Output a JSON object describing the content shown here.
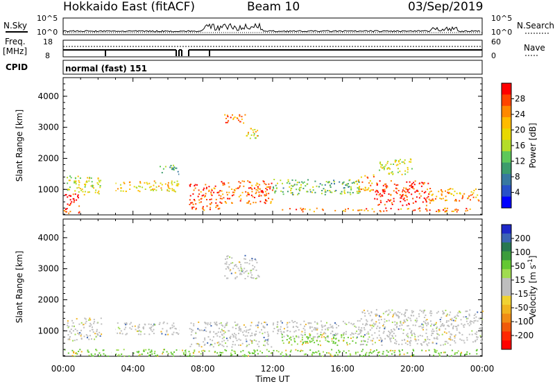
{
  "header": {
    "title": "Hokkaido East (fitACF)",
    "beam": "Beam 10",
    "date": "03/Sep/2019"
  },
  "top_panel": {
    "nsky_label": "N.Sky",
    "nsearch_label": "N.Search",
    "nsky_ticks": [
      "10^5",
      "10^0"
    ],
    "nsearch_ticks": [
      "10^5",
      "10^0"
    ],
    "freq_label": "Freq.",
    "freq_unit": "[MHz]",
    "freq_ticks": [
      "18",
      "8"
    ],
    "nave_label": "Nave",
    "nave_ticks": [
      "60",
      "0"
    ],
    "cpid_label": "CPID",
    "cpid_text": "normal (fast) 151"
  },
  "chart_data": [
    {
      "type": "heatmap",
      "name": "power",
      "ylabel": "Slant Range [km]",
      "x_ticks": [
        "00:00",
        "04:00",
        "08:00",
        "12:00",
        "16:00",
        "20:00",
        "00:00"
      ],
      "x_range_hours": [
        0,
        24
      ],
      "y_range_km": [
        180,
        4600
      ],
      "y_ticks": [
        1000,
        2000,
        3000,
        4000
      ],
      "colorbar_label": "Power [dB]",
      "colorbar_ticks": [
        "28",
        "24",
        "20",
        "16",
        "12",
        "8",
        "4"
      ],
      "colorbar_colors": [
        "#ff0000",
        "#ff4400",
        "#ff8800",
        "#ffbb00",
        "#e8d800",
        "#b4dc28",
        "#5ec85a",
        "#3c9c6c",
        "#3878a0",
        "#2850c8",
        "#0000ff"
      ],
      "echo_regions": [
        {
          "t0": 0.2,
          "t1": 2.2,
          "r0": 850,
          "r1": 1450,
          "level": 0.55
        },
        {
          "t0": 0.0,
          "t1": 0.9,
          "r0": 250,
          "r1": 900,
          "level": 0.95
        },
        {
          "t0": 2.8,
          "t1": 6.7,
          "r0": 950,
          "r1": 1300,
          "level": 0.65
        },
        {
          "t0": 5.5,
          "t1": 6.6,
          "r0": 1500,
          "r1": 1800,
          "level": 0.35
        },
        {
          "t0": 7.2,
          "t1": 9.0,
          "r0": 350,
          "r1": 1200,
          "level": 0.9
        },
        {
          "t0": 9.0,
          "t1": 12.0,
          "r0": 550,
          "r1": 1300,
          "level": 0.85
        },
        {
          "t0": 12.0,
          "t1": 17.0,
          "r0": 850,
          "r1": 1350,
          "level": 0.4
        },
        {
          "t0": 12.5,
          "t1": 23.5,
          "r0": 300,
          "r1": 420,
          "level": 0.8
        },
        {
          "t0": 9.2,
          "t1": 10.4,
          "r0": 3100,
          "r1": 3450,
          "level": 0.85
        },
        {
          "t0": 10.2,
          "t1": 11.2,
          "r0": 2650,
          "r1": 3000,
          "level": 0.6
        },
        {
          "t0": 16.8,
          "t1": 17.8,
          "r0": 950,
          "r1": 1500,
          "level": 0.75
        },
        {
          "t0": 17.8,
          "t1": 21.0,
          "r0": 500,
          "r1": 1300,
          "level": 0.95
        },
        {
          "t0": 18.0,
          "t1": 20.0,
          "r0": 1500,
          "r1": 2000,
          "level": 0.55
        },
        {
          "t0": 20.8,
          "t1": 23.8,
          "r0": 650,
          "r1": 1050,
          "level": 0.75
        }
      ]
    },
    {
      "type": "heatmap",
      "name": "velocity",
      "ylabel": "Slant Range [km]",
      "xlabel": "Time UT",
      "x_ticks": [
        "00:00",
        "04:00",
        "08:00",
        "12:00",
        "16:00",
        "20:00",
        "00:00"
      ],
      "x_range_hours": [
        0,
        24
      ],
      "y_range_km": [
        180,
        4600
      ],
      "y_ticks": [
        1000,
        2000,
        3000,
        4000
      ],
      "colorbar_label": "Velocity [m s",
      "colorbar_label_sup": "-1",
      "colorbar_label_end": "]",
      "colorbar_ticks": [
        "200",
        "100",
        "50",
        "15",
        "-15",
        "-50",
        "-100",
        "-200"
      ],
      "colorbar_colors": [
        "#1e28c8",
        "#3c64b4",
        "#287850",
        "#3c9c3c",
        "#64c832",
        "#a0dc50",
        "#bebebe",
        "#bebebe",
        "#f0d232",
        "#f0b41e",
        "#f08c14",
        "#f05a0a",
        "#ff2800",
        "#ff0000"
      ],
      "echo_regions": [
        {
          "t0": 0.2,
          "t1": 2.2,
          "r0": 700,
          "r1": 1450,
          "level": "grey"
        },
        {
          "t0": 2.8,
          "t1": 6.7,
          "r0": 900,
          "r1": 1300,
          "level": "grey"
        },
        {
          "t0": 7.2,
          "t1": 12.0,
          "r0": 500,
          "r1": 1300,
          "level": "grey"
        },
        {
          "t0": 12.0,
          "t1": 17.0,
          "r0": 800,
          "r1": 1350,
          "level": "grey"
        },
        {
          "t0": 17.0,
          "t1": 24.0,
          "r0": 550,
          "r1": 1700,
          "level": "grey"
        },
        {
          "t0": 12.5,
          "t1": 17.5,
          "r0": 550,
          "r1": 900,
          "level": "green"
        },
        {
          "t0": 0.0,
          "t1": 23.8,
          "r0": 200,
          "r1": 420,
          "level": "green"
        },
        {
          "t0": 9.2,
          "t1": 11.2,
          "r0": 2700,
          "r1": 3450,
          "level": "grey"
        }
      ]
    }
  ]
}
